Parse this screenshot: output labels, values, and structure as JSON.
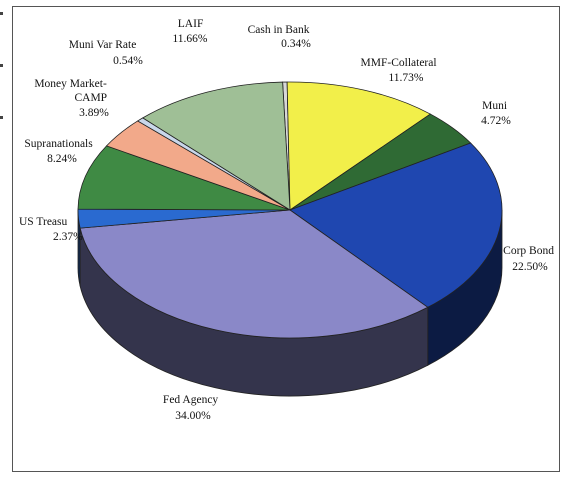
{
  "chart_data": {
    "type": "pie",
    "style": "3d-exploded-none",
    "title": "",
    "legend": "none",
    "slices": [
      {
        "label": "Cash in Bank",
        "value": 0.34,
        "value_label": "0.34%",
        "color": "#d8d8d8"
      },
      {
        "label": "MMF-Collateral",
        "value": 11.73,
        "value_label": "11.73%",
        "color": "#f2ef4a"
      },
      {
        "label": "Muni",
        "value": 4.72,
        "value_label": "4.72%",
        "color": "#2f6a34"
      },
      {
        "label": "Corp Bond",
        "value": 22.5,
        "value_label": "22.50%",
        "color": "#1f47b0"
      },
      {
        "label": "Fed Agency",
        "value": 34.0,
        "value_label": "34.00%",
        "color": "#8a88c8"
      },
      {
        "label": "US Treasury",
        "value": 2.37,
        "value_label": "2.37%",
        "color": "#2a6ad0"
      },
      {
        "label": "Supranationals",
        "value": 8.24,
        "value_label": "8.24%",
        "color": "#3f8a44"
      },
      {
        "label": "Money Market-CAMP",
        "value": 3.89,
        "value_label": "3.89%",
        "color": "#f2a98a"
      },
      {
        "label": "Muni Var Rate",
        "value": 0.54,
        "value_label": "0.54%",
        "color": "#c9d7ea"
      },
      {
        "label": "LAIF",
        "value": 11.66,
        "value_label": "11.66%",
        "color": "#9fbf96"
      }
    ],
    "label_text": {
      "cash_in_bank": [
        "Cash in Bank",
        "0.34%"
      ],
      "mmf_collateral": [
        "MMF-Collateral",
        "11.73%"
      ],
      "muni": [
        "Muni",
        "4.72%"
      ],
      "corp_bond": [
        "Corp Bond",
        "22.50%"
      ],
      "fed_agency": [
        "Fed Agency",
        "34.00%"
      ],
      "us_treasury": [
        "US Treasu",
        "2.37%"
      ],
      "supranationals": [
        "Supranationals",
        "8.24%"
      ],
      "money_market_camp": [
        "Money Market-",
        "CAMP",
        "3.89%"
      ],
      "muni_var_rate": [
        "Muni Var Rate",
        "0.54%"
      ],
      "laif": [
        "LAIF",
        "11.66%"
      ]
    }
  }
}
